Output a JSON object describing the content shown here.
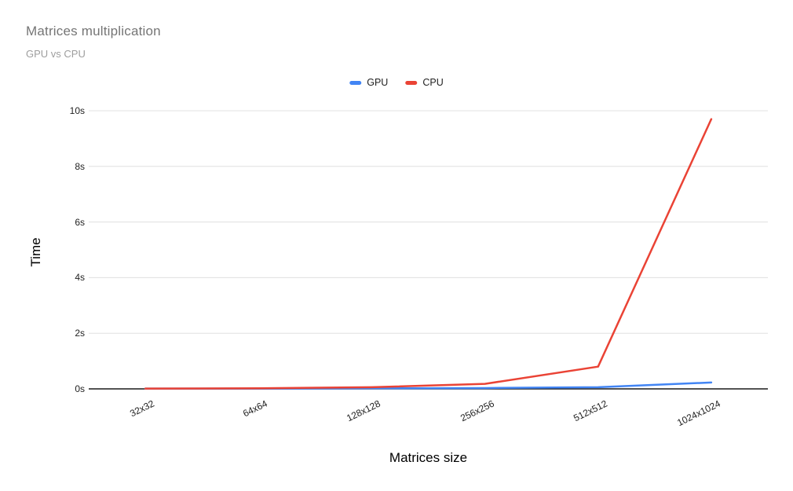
{
  "title": "Matrices multiplication",
  "subtitle": "GPU vs CPU",
  "legend": {
    "items": [
      {
        "label": "GPU",
        "color": "#4285f4"
      },
      {
        "label": "CPU",
        "color": "#ea4335"
      }
    ]
  },
  "chart_data": {
    "type": "line",
    "title": "Matrices multiplication",
    "subtitle": "GPU vs CPU",
    "xlabel": "Matrices size",
    "ylabel": "Time",
    "categories": [
      "32x32",
      "64x64",
      "128x128",
      "256x256",
      "512x512",
      "1024x1024"
    ],
    "series": [
      {
        "name": "GPU",
        "color": "#4285f4",
        "values": [
          0.01,
          0.01,
          0.02,
          0.03,
          0.06,
          0.23
        ]
      },
      {
        "name": "CPU",
        "color": "#ea4335",
        "values": [
          0.01,
          0.02,
          0.06,
          0.18,
          0.8,
          9.7
        ]
      }
    ],
    "ylim": [
      0,
      10
    ],
    "yticks": [
      {
        "value": 0,
        "label": "0s"
      },
      {
        "value": 2,
        "label": "2s"
      },
      {
        "value": 4,
        "label": "4s"
      },
      {
        "value": 6,
        "label": "6s"
      },
      {
        "value": 8,
        "label": "8s"
      },
      {
        "value": 10,
        "label": "10s"
      }
    ],
    "grid": true,
    "legend_position": "top"
  },
  "colors": {
    "grid": "#e0e0e0",
    "axis": "#1a1a1a",
    "title": "#757575",
    "subtitle": "#9e9e9e",
    "tick": "#222222",
    "background": "#ffffff"
  }
}
